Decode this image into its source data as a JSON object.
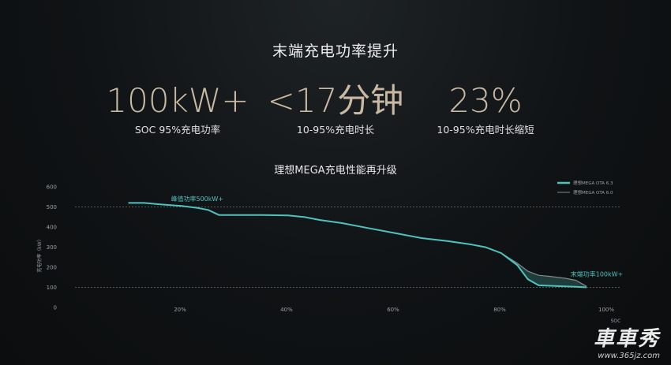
{
  "title": "末端充电功率提升",
  "stats": [
    {
      "value": "100kW+",
      "label": "SOC 95%充电功率"
    },
    {
      "value": "<17分钟",
      "label": "10-95%充电时长"
    },
    {
      "value": "23%",
      "label": "10-95%充电时长缩短"
    }
  ],
  "watermark": {
    "url": "www.365jz.com"
  },
  "chart_data": {
    "type": "line",
    "title": "理想MEGA充电性能再升级",
    "xlabel": "SOC",
    "ylabel": "充电功率（kW）",
    "xlim": [
      0,
      100
    ],
    "ylim": [
      0,
      600
    ],
    "x_ticks": [
      "20%",
      "40%",
      "60%",
      "80%",
      "100%"
    ],
    "x_tick_values": [
      20,
      40,
      60,
      80,
      100
    ],
    "y_ticks": [
      "0",
      "100",
      "200",
      "300",
      "400",
      "500",
      "600"
    ],
    "y_tick_values": [
      0,
      100,
      200,
      300,
      400,
      500,
      600
    ],
    "reference_lines": [
      500,
      100
    ],
    "legend_position": "top-right",
    "series": [
      {
        "name": "理想MEGA OTA 6.3",
        "color": "#4fc2bd",
        "x": [
          10,
          13,
          16,
          20,
          23,
          25,
          27,
          30,
          35,
          40,
          43,
          46,
          50,
          55,
          60,
          65,
          70,
          74,
          77,
          80,
          83,
          85,
          87,
          89,
          92,
          94,
          96
        ],
        "y": [
          520,
          520,
          513,
          505,
          495,
          485,
          460,
          460,
          460,
          458,
          450,
          435,
          420,
          395,
          370,
          345,
          330,
          315,
          300,
          270,
          210,
          140,
          110,
          108,
          105,
          103,
          100
        ]
      },
      {
        "name": "理想MEGA OTA 6.0",
        "color": "#7e8a8e",
        "x": [
          10,
          13,
          16,
          20,
          23,
          25,
          27,
          30,
          35,
          40,
          43,
          46,
          50,
          55,
          60,
          65,
          70,
          74,
          77,
          80,
          83,
          85,
          87,
          89,
          92,
          94,
          96
        ],
        "y": [
          520,
          520,
          513,
          505,
          495,
          485,
          460,
          460,
          460,
          458,
          450,
          435,
          420,
          395,
          370,
          345,
          330,
          315,
          300,
          270,
          220,
          180,
          160,
          155,
          145,
          135,
          105
        ]
      }
    ],
    "annotations": [
      {
        "text": "峰值功率500kW+",
        "x": 18,
        "y": 530
      },
      {
        "text": "末端功率100kW+",
        "x": 93,
        "y": 155
      }
    ]
  }
}
